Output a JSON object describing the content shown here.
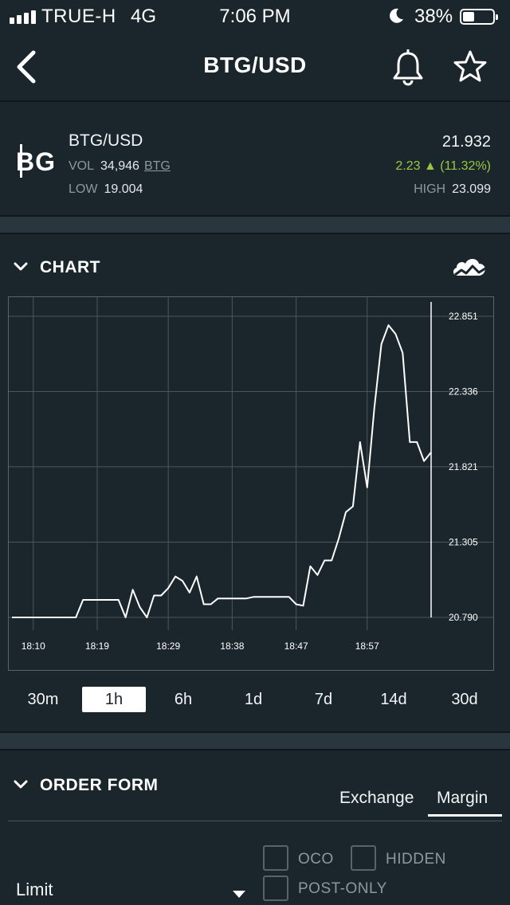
{
  "status_bar": {
    "carrier": "TRUE-H",
    "network": "4G",
    "time": "7:06 PM",
    "battery": "38%",
    "battery_level": 0.38
  },
  "nav": {
    "title": "BTG/USD",
    "back_icon": "chevron-left-icon",
    "bell_icon": "bell-icon",
    "star_icon": "star-icon"
  },
  "ticker": {
    "logo": "BG",
    "pair": "BTG/USD",
    "vol_label": "VOL",
    "vol_value": "34,946",
    "vol_currency": "BTG",
    "low_label": "LOW",
    "low_value": "19.004",
    "price": "21.932",
    "change": "2.23 ▲ (11.32%)",
    "high_label": "HIGH",
    "high_value": "23.099"
  },
  "chart_section": {
    "title": "CHART",
    "toggle_icon": "cloud-chart-icon"
  },
  "chart_data": {
    "type": "line",
    "title": "",
    "xlabel": "",
    "ylabel": "",
    "x_ticks": [
      "18:10",
      "18:19",
      "18:29",
      "18:38",
      "18:47",
      "18:57"
    ],
    "y_ticks": [
      "22.851",
      "22.336",
      "21.821",
      "21.305",
      "20.790"
    ],
    "ylim": [
      20.79,
      22.851
    ],
    "grid": true,
    "series": [
      {
        "points": [
          [
            "18:07",
            20.79
          ],
          [
            "18:08",
            20.79
          ],
          [
            "18:09",
            20.79
          ],
          [
            "18:10",
            20.79
          ],
          [
            "18:11",
            20.79
          ],
          [
            "18:12",
            20.79
          ],
          [
            "18:13",
            20.79
          ],
          [
            "18:14",
            20.79
          ],
          [
            "18:15",
            20.79
          ],
          [
            "18:16",
            20.79
          ],
          [
            "18:17",
            20.91
          ],
          [
            "18:18",
            20.91
          ],
          [
            "18:19",
            20.91
          ],
          [
            "18:20",
            20.91
          ],
          [
            "18:21",
            20.91
          ],
          [
            "18:22",
            20.91
          ],
          [
            "18:23",
            20.79
          ],
          [
            "18:24",
            20.98
          ],
          [
            "18:25",
            20.86
          ],
          [
            "18:26",
            20.79
          ],
          [
            "18:27",
            20.94
          ],
          [
            "18:28",
            20.94
          ],
          [
            "18:29",
            20.99
          ],
          [
            "18:30",
            21.07
          ],
          [
            "18:31",
            21.04
          ],
          [
            "18:32",
            20.96
          ],
          [
            "18:33",
            21.07
          ],
          [
            "18:34",
            20.88
          ],
          [
            "18:35",
            20.88
          ],
          [
            "18:36",
            20.92
          ],
          [
            "18:37",
            20.92
          ],
          [
            "18:38",
            20.92
          ],
          [
            "18:39",
            20.92
          ],
          [
            "18:40",
            20.92
          ],
          [
            "18:41",
            20.93
          ],
          [
            "18:42",
            20.93
          ],
          [
            "18:43",
            20.93
          ],
          [
            "18:44",
            20.93
          ],
          [
            "18:45",
            20.93
          ],
          [
            "18:46",
            20.93
          ],
          [
            "18:47",
            20.88
          ],
          [
            "18:48",
            20.87
          ],
          [
            "18:49",
            21.14
          ],
          [
            "18:50",
            21.08
          ],
          [
            "18:51",
            21.18
          ],
          [
            "18:52",
            21.18
          ],
          [
            "18:53",
            21.33
          ],
          [
            "18:54",
            21.51
          ],
          [
            "18:55",
            21.55
          ],
          [
            "18:56",
            21.99
          ],
          [
            "18:57",
            21.68
          ],
          [
            "18:58",
            22.22
          ],
          [
            "18:59",
            22.66
          ],
          [
            "19:00",
            22.79
          ],
          [
            "19:01",
            22.73
          ],
          [
            "19:02",
            22.6
          ],
          [
            "19:03",
            21.99
          ],
          [
            "19:04",
            21.99
          ],
          [
            "19:05",
            21.86
          ],
          [
            "19:06",
            21.92
          ]
        ]
      }
    ]
  },
  "ranges": [
    "30m",
    "1h",
    "6h",
    "1d",
    "7d",
    "14d",
    "30d"
  ],
  "active_range": "1h",
  "order_form": {
    "title": "ORDER FORM",
    "tabs": [
      "Exchange",
      "Margin"
    ],
    "active_tab": "Margin",
    "options": {
      "oco": "OCO",
      "hidden": "HIDDEN",
      "post_only": "POST-ONLY"
    },
    "order_type": "Limit"
  }
}
